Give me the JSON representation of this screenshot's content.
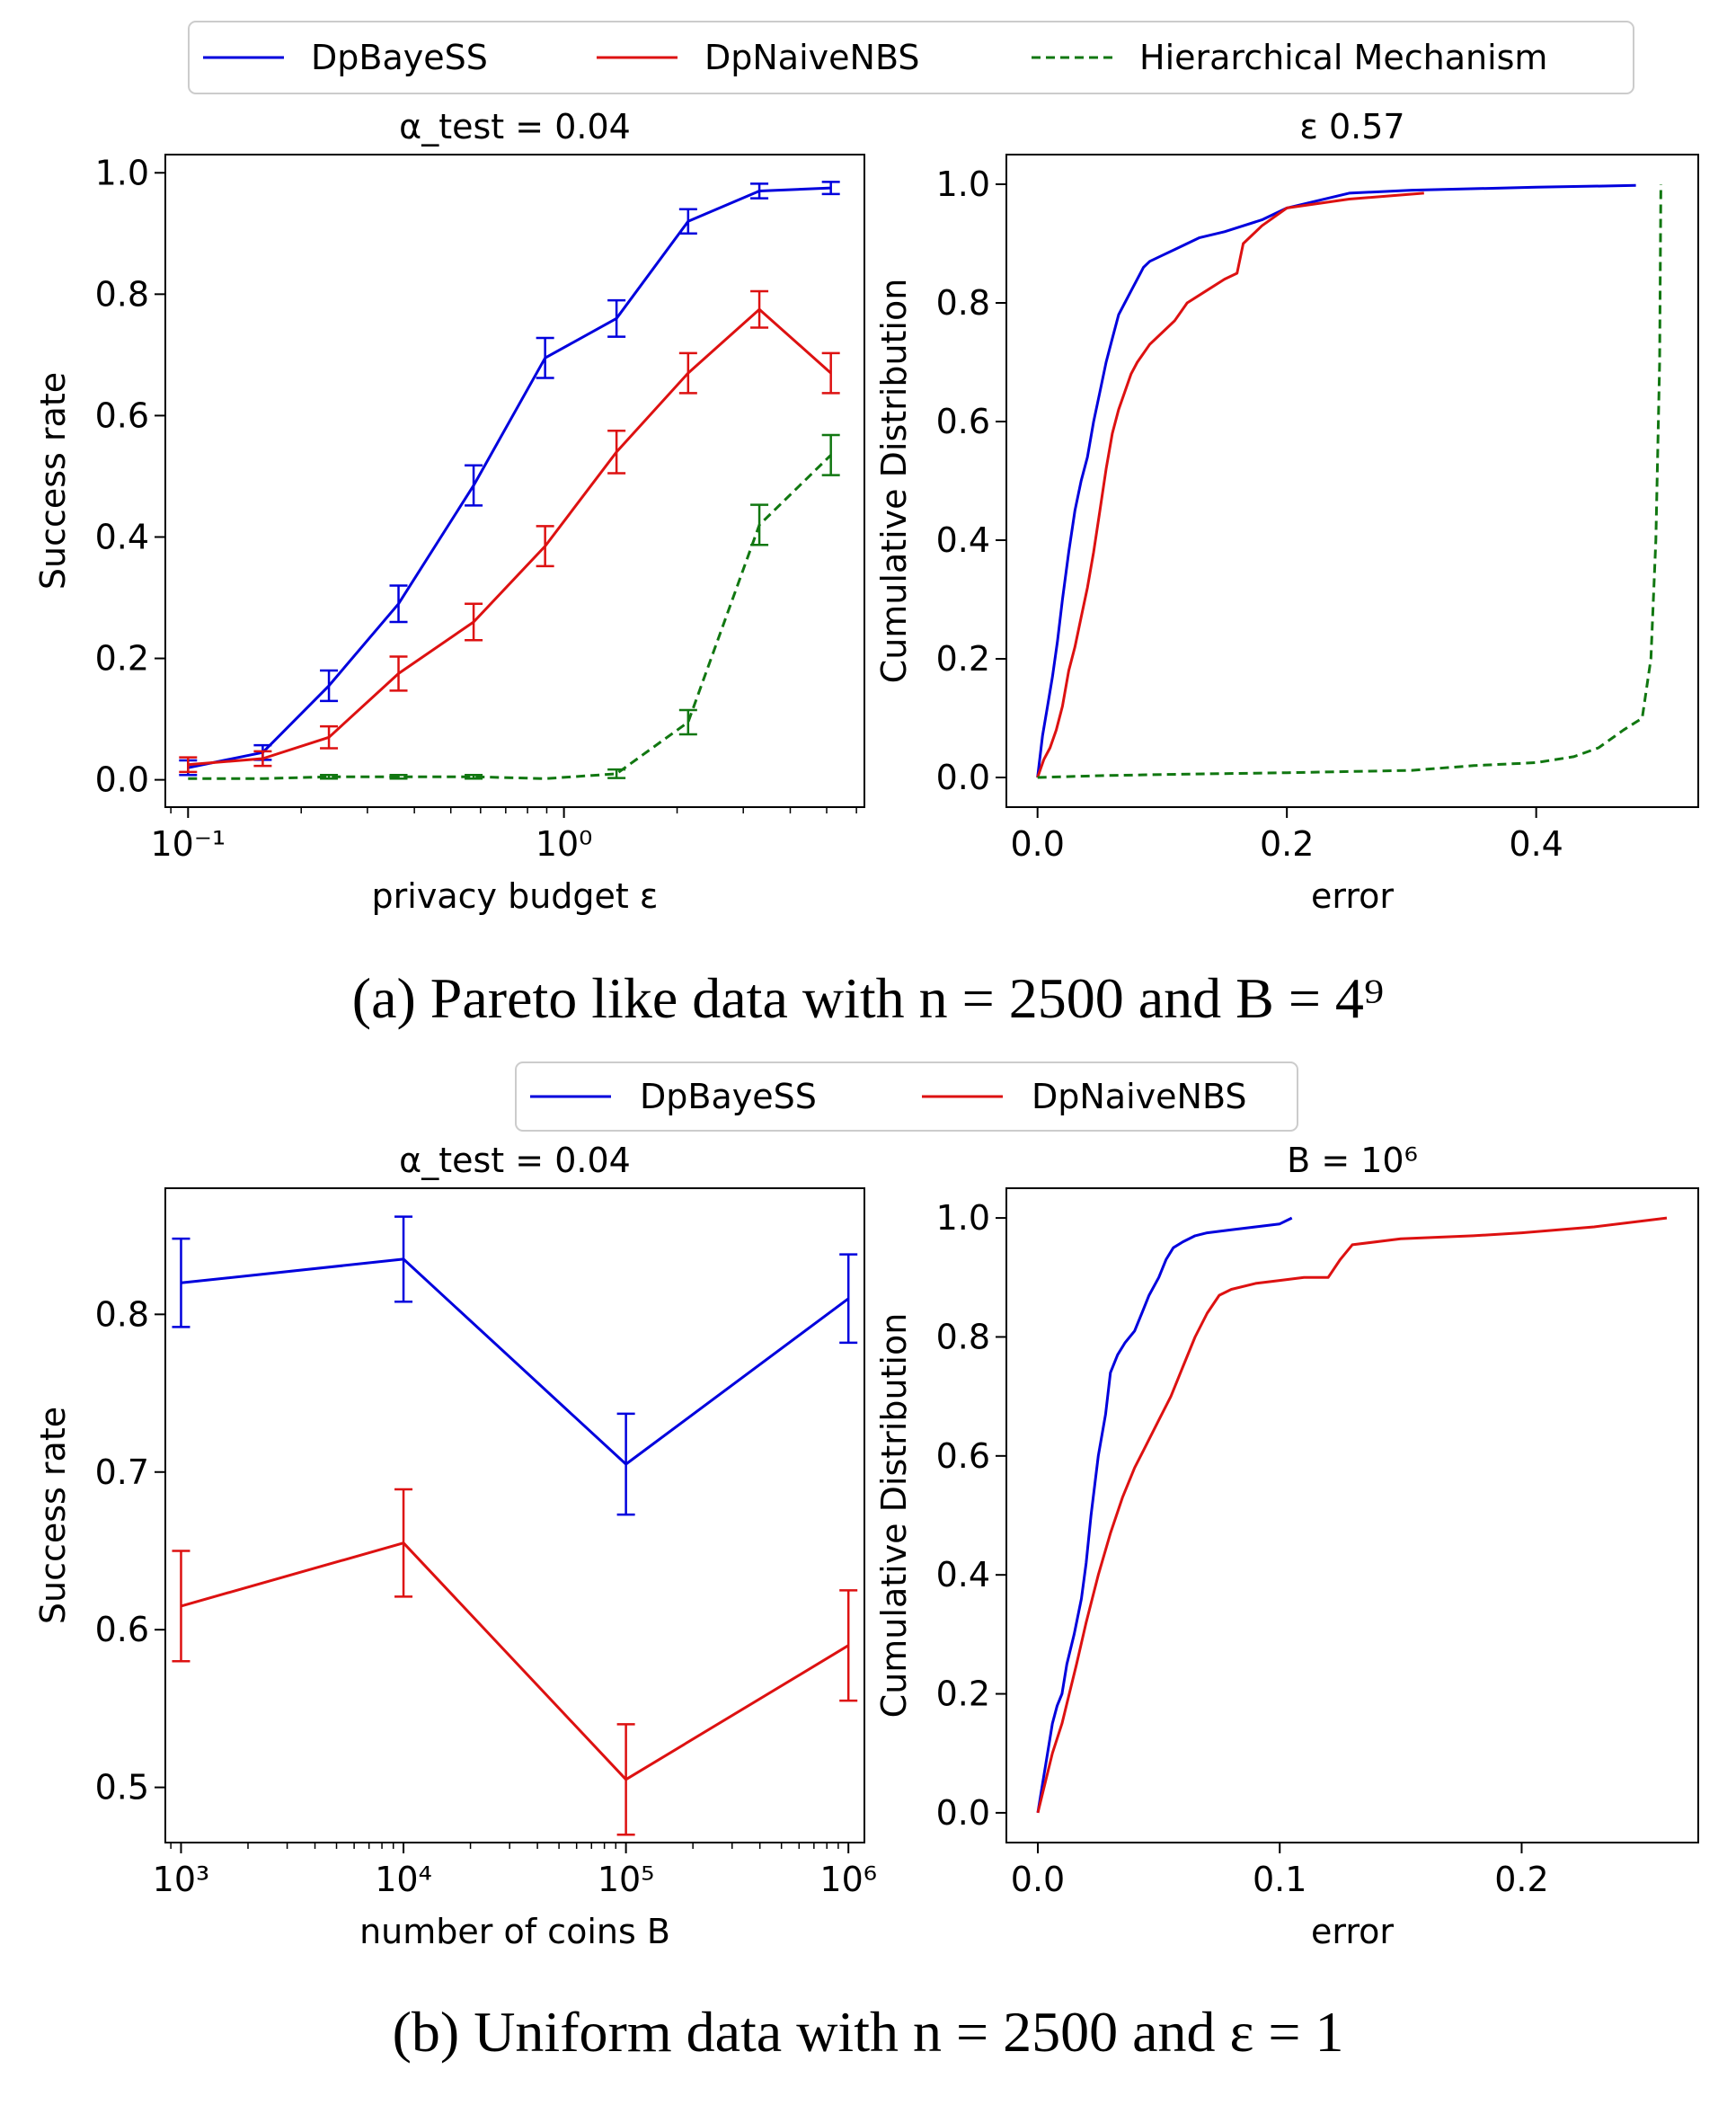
{
  "colors": {
    "DpBayeSS": "#0000dd",
    "DpNaiveNBS": "#dd1111",
    "Hierarchical Mechanism": "#117711",
    "axis": "#000000",
    "legend_border": "#cccccc"
  },
  "figure_a": {
    "legend": [
      "DpBayeSS",
      "DpNaiveNBS",
      "Hierarchical Mechanism"
    ],
    "caption": "(a) Pareto like data with n = 2500 and B = 4⁹"
  },
  "figure_b": {
    "legend": [
      "DpBayeSS",
      "DpNaiveNBS"
    ],
    "caption": "(b) Uniform data with n = 2500 and ε = 1"
  },
  "chart_data": [
    {
      "id": "a-left",
      "type": "line",
      "title": "α_test = 0.04",
      "xlabel": "privacy budget ε",
      "ylabel": "Success rate",
      "xscale": "log",
      "xlim": [
        0.087,
        6.3
      ],
      "ylim": [
        -0.045,
        1.03
      ],
      "xticks": [
        0.1,
        1
      ],
      "xtick_labels": [
        "10⁻¹",
        "10⁰"
      ],
      "yticks": [
        0,
        0.2,
        0.4,
        0.6,
        0.8,
        1.0
      ],
      "ytick_labels": [
        "0.0",
        "0.2",
        "0.4",
        "0.6",
        "0.8",
        "1.0"
      ],
      "x": [
        0.1,
        0.158,
        0.237,
        0.363,
        0.575,
        0.891,
        1.38,
        2.14,
        3.31,
        5.13
      ],
      "series": [
        {
          "name": "DpBayeSS",
          "style": "solid",
          "values": [
            0.02,
            0.045,
            0.155,
            0.29,
            0.485,
            0.695,
            0.76,
            0.92,
            0.97,
            0.975
          ],
          "err": [
            0.012,
            0.012,
            0.025,
            0.03,
            0.033,
            0.033,
            0.03,
            0.02,
            0.012,
            0.01
          ]
        },
        {
          "name": "DpNaiveNBS",
          "style": "solid",
          "values": [
            0.025,
            0.035,
            0.07,
            0.175,
            0.26,
            0.385,
            0.54,
            0.67,
            0.775,
            0.67
          ],
          "err": [
            0.012,
            0.012,
            0.018,
            0.028,
            0.03,
            0.033,
            0.035,
            0.033,
            0.03,
            0.033
          ]
        },
        {
          "name": "Hierarchical Mechanism",
          "style": "dashed",
          "values": [
            0.002,
            0.002,
            0.005,
            0.005,
            0.005,
            0.002,
            0.01,
            0.095,
            0.42,
            0.535
          ],
          "err": [
            0,
            0,
            0.003,
            0.003,
            0.003,
            0,
            0.007,
            0.02,
            0.033,
            0.033
          ]
        }
      ]
    },
    {
      "id": "a-right",
      "type": "line",
      "title": "ε 0.57",
      "xlabel": "error",
      "ylabel": "Cumulative Distribution",
      "xlim": [
        -0.025,
        0.53
      ],
      "ylim": [
        -0.05,
        1.05
      ],
      "xticks": [
        0,
        0.2,
        0.4
      ],
      "xtick_labels": [
        "0.0",
        "0.2",
        "0.4"
      ],
      "yticks": [
        0,
        0.2,
        0.4,
        0.6,
        0.8,
        1.0
      ],
      "ytick_labels": [
        "0.0",
        "0.2",
        "0.4",
        "0.6",
        "0.8",
        "1.0"
      ],
      "series": [
        {
          "name": "DpBayeSS",
          "style": "solid",
          "x": [
            0,
            0.004,
            0.008,
            0.012,
            0.016,
            0.02,
            0.025,
            0.03,
            0.035,
            0.04,
            0.045,
            0.05,
            0.055,
            0.06,
            0.065,
            0.07,
            0.075,
            0.08,
            0.085,
            0.09,
            0.1,
            0.11,
            0.13,
            0.15,
            0.18,
            0.2,
            0.25,
            0.3,
            0.4,
            0.48
          ],
          "y": [
            0,
            0.07,
            0.12,
            0.17,
            0.23,
            0.3,
            0.38,
            0.45,
            0.5,
            0.54,
            0.6,
            0.65,
            0.7,
            0.74,
            0.78,
            0.8,
            0.82,
            0.84,
            0.86,
            0.87,
            0.88,
            0.89,
            0.91,
            0.92,
            0.94,
            0.96,
            0.985,
            0.99,
            0.995,
            0.998
          ]
        },
        {
          "name": "DpNaiveNBS",
          "style": "solid",
          "x": [
            0,
            0.005,
            0.01,
            0.015,
            0.02,
            0.025,
            0.03,
            0.035,
            0.04,
            0.045,
            0.05,
            0.055,
            0.06,
            0.065,
            0.07,
            0.075,
            0.08,
            0.09,
            0.1,
            0.11,
            0.12,
            0.135,
            0.15,
            0.16,
            0.165,
            0.18,
            0.2,
            0.25,
            0.31
          ],
          "y": [
            0,
            0.03,
            0.05,
            0.08,
            0.12,
            0.18,
            0.22,
            0.27,
            0.32,
            0.38,
            0.45,
            0.52,
            0.58,
            0.62,
            0.65,
            0.68,
            0.7,
            0.73,
            0.75,
            0.77,
            0.8,
            0.82,
            0.84,
            0.85,
            0.9,
            0.93,
            0.96,
            0.975,
            0.985
          ]
        },
        {
          "name": "Hierarchical Mechanism",
          "style": "dashed",
          "x": [
            0,
            0.05,
            0.1,
            0.2,
            0.3,
            0.35,
            0.4,
            0.43,
            0.45,
            0.47,
            0.485,
            0.492,
            0.496,
            0.499,
            0.5
          ],
          "y": [
            0,
            0.003,
            0.005,
            0.008,
            0.012,
            0.02,
            0.025,
            0.035,
            0.05,
            0.08,
            0.1,
            0.2,
            0.4,
            0.7,
            1.0
          ]
        }
      ]
    },
    {
      "id": "b-left",
      "type": "line",
      "title": "α_test = 0.04",
      "xlabel": "number of coins B",
      "ylabel": "Success rate",
      "xscale": "log",
      "xlim": [
        850,
        1180000
      ],
      "ylim": [
        0.465,
        0.88
      ],
      "xticks": [
        1000,
        10000,
        100000,
        1000000
      ],
      "xtick_labels": [
        "10³",
        "10⁴",
        "10⁵",
        "10⁶"
      ],
      "yticks": [
        0.5,
        0.6,
        0.7,
        0.8
      ],
      "ytick_labels": [
        "0.5",
        "0.6",
        "0.7",
        "0.8"
      ],
      "x": [
        1000,
        10000,
        100000,
        1000000
      ],
      "series": [
        {
          "name": "DpBayeSS",
          "style": "solid",
          "values": [
            0.82,
            0.835,
            0.705,
            0.81
          ],
          "err": [
            0.028,
            0.027,
            0.032,
            0.028
          ]
        },
        {
          "name": "DpNaiveNBS",
          "style": "solid",
          "values": [
            0.615,
            0.655,
            0.505,
            0.59
          ],
          "err": [
            0.035,
            0.034,
            0.035,
            0.035
          ]
        }
      ]
    },
    {
      "id": "b-right",
      "type": "line",
      "title": "B = 10⁶",
      "xlabel": "error",
      "ylabel": "Cumulative Distribution",
      "xlim": [
        -0.013,
        0.273
      ],
      "ylim": [
        -0.05,
        1.05
      ],
      "xticks": [
        0,
        0.1,
        0.2
      ],
      "xtick_labels": [
        "0.0",
        "0.1",
        "0.2"
      ],
      "yticks": [
        0,
        0.2,
        0.4,
        0.6,
        0.8,
        1.0
      ],
      "ytick_labels": [
        "0.0",
        "0.2",
        "0.4",
        "0.6",
        "0.8",
        "1.0"
      ],
      "series": [
        {
          "name": "DpBayeSS",
          "style": "solid",
          "x": [
            0,
            0.002,
            0.004,
            0.006,
            0.008,
            0.01,
            0.012,
            0.015,
            0.018,
            0.02,
            0.022,
            0.025,
            0.028,
            0.03,
            0.033,
            0.036,
            0.04,
            0.043,
            0.046,
            0.05,
            0.053,
            0.056,
            0.06,
            0.065,
            0.07,
            0.08,
            0.09,
            0.1,
            0.105
          ],
          "y": [
            0,
            0.05,
            0.1,
            0.15,
            0.18,
            0.2,
            0.25,
            0.3,
            0.36,
            0.42,
            0.5,
            0.6,
            0.67,
            0.74,
            0.77,
            0.79,
            0.81,
            0.84,
            0.87,
            0.9,
            0.93,
            0.95,
            0.96,
            0.97,
            0.975,
            0.98,
            0.985,
            0.99,
            1.0
          ]
        },
        {
          "name": "DpNaiveNBS",
          "style": "solid",
          "x": [
            0,
            0.003,
            0.006,
            0.01,
            0.013,
            0.016,
            0.02,
            0.025,
            0.03,
            0.035,
            0.04,
            0.045,
            0.05,
            0.055,
            0.06,
            0.065,
            0.07,
            0.075,
            0.08,
            0.09,
            0.1,
            0.11,
            0.12,
            0.125,
            0.13,
            0.15,
            0.18,
            0.2,
            0.23,
            0.26
          ],
          "y": [
            0,
            0.05,
            0.1,
            0.15,
            0.2,
            0.25,
            0.32,
            0.4,
            0.47,
            0.53,
            0.58,
            0.62,
            0.66,
            0.7,
            0.75,
            0.8,
            0.84,
            0.87,
            0.88,
            0.89,
            0.895,
            0.9,
            0.9,
            0.93,
            0.955,
            0.965,
            0.97,
            0.975,
            0.985,
            1.0
          ]
        }
      ]
    }
  ]
}
